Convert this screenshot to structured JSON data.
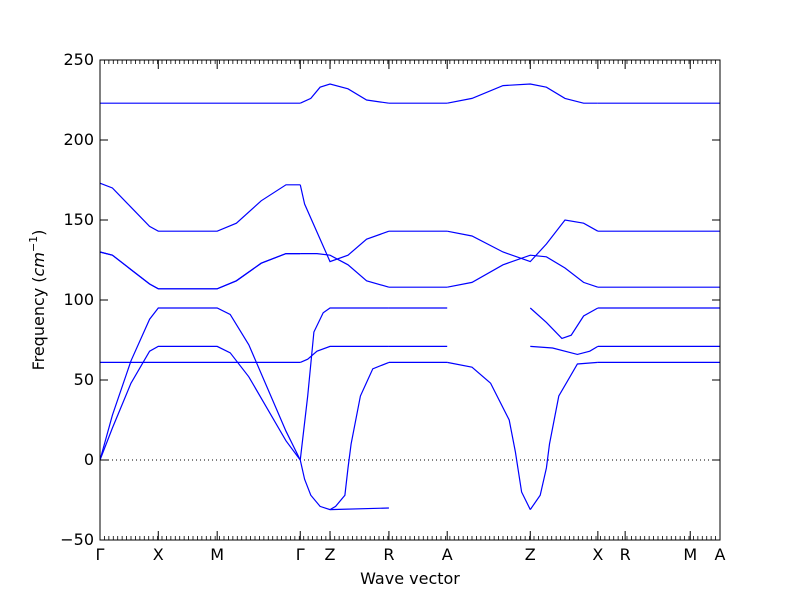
{
  "chart_data": {
    "type": "line",
    "title": "",
    "xlabel": "Wave vector",
    "ylabel": "Frequency",
    "ylabel_unit": "cm",
    "ylabel_unit_exponent": "−1",
    "ylim": [
      -50,
      250
    ],
    "yticks": [
      -50,
      0,
      50,
      100,
      150,
      200,
      250
    ],
    "xlim": [
      0,
      1
    ],
    "xticks": [
      {
        "label": "Γ",
        "pos": 0.0
      },
      {
        "label": "X",
        "pos": 0.094
      },
      {
        "label": "M",
        "pos": 0.189
      },
      {
        "label": "Γ",
        "pos": 0.323
      },
      {
        "label": "Z",
        "pos": 0.371
      },
      {
        "label": "R",
        "pos": 0.466
      },
      {
        "label": "A",
        "pos": 0.56
      },
      {
        "label": "Z",
        "pos": 0.694
      },
      {
        "label": "X",
        "pos": 0.803
      },
      {
        "label": "R",
        "pos": 0.847
      },
      {
        "label": "M",
        "pos": 0.952
      },
      {
        "label": "A",
        "pos": 1.0
      }
    ],
    "zero_line": true,
    "grid": false,
    "line_color": "#0000ff",
    "series": [
      {
        "x": [
          0,
          0.02,
          0.05,
          0.08,
          0.094,
          0.189,
          0.21,
          0.24,
          0.27,
          0.3,
          0.323
        ],
        "y": [
          0,
          20,
          48,
          68,
          71,
          71,
          67,
          52,
          32,
          12,
          0
        ]
      },
      {
        "x": [
          0,
          0.02,
          0.05,
          0.08,
          0.094,
          0.189,
          0.21,
          0.24,
          0.27,
          0.3,
          0.323
        ],
        "y": [
          0,
          28,
          62,
          88,
          95,
          95,
          91,
          72,
          45,
          18,
          0
        ]
      },
      {
        "x": [
          0,
          0.094,
          0.189,
          0.323
        ],
        "y": [
          61,
          61,
          61,
          61
        ]
      },
      {
        "x": [
          0,
          0.02,
          0.05,
          0.08,
          0.094,
          0.189,
          0.22,
          0.26,
          0.3,
          0.323
        ],
        "y": [
          130,
          128,
          119,
          110,
          107,
          107,
          112,
          123,
          129,
          129
        ]
      },
      {
        "x": [
          0,
          0.02,
          0.05,
          0.08,
          0.094,
          0.189,
          0.22,
          0.26,
          0.3,
          0.323
        ],
        "y": [
          130,
          128,
          119,
          110,
          107,
          107,
          112,
          123,
          129,
          129
        ]
      },
      {
        "x": [
          0,
          0.02,
          0.05,
          0.08,
          0.094,
          0.189,
          0.22,
          0.26,
          0.3,
          0.323
        ],
        "y": [
          173,
          170,
          158,
          146,
          143,
          143,
          148,
          162,
          172,
          172
        ]
      },
      {
        "x": [
          0,
          0.323
        ],
        "y": [
          223,
          223
        ]
      },
      {
        "x": [
          0.323,
          0.33,
          0.34,
          0.355,
          0.371,
          0.466
        ],
        "y": [
          0,
          -12,
          -22,
          -29,
          -31,
          -30
        ]
      },
      {
        "x": [
          0.371,
          0.38,
          0.395,
          0.4,
          0.405,
          0.42,
          0.44,
          0.466
        ],
        "y": [
          -31,
          -29,
          -22,
          -5,
          10,
          40,
          57,
          61
        ]
      },
      {
        "x": [
          0.323,
          0.335,
          0.345,
          0.36,
          0.371,
          0.466
        ],
        "y": [
          0,
          40,
          80,
          92,
          95,
          95
        ]
      },
      {
        "x": [
          0.323,
          0.335,
          0.35,
          0.371,
          0.466
        ],
        "y": [
          61,
          63,
          68,
          71,
          71
        ]
      },
      {
        "x": [
          0.323,
          0.33,
          0.371,
          0.4,
          0.43,
          0.466
        ],
        "y": [
          172,
          160,
          124,
          128,
          138,
          143
        ]
      },
      {
        "x": [
          0.323,
          0.35,
          0.371,
          0.4,
          0.43,
          0.466
        ],
        "y": [
          129,
          129,
          128,
          122,
          112,
          108
        ]
      },
      {
        "x": [
          0.323,
          0.34,
          0.355,
          0.371,
          0.4,
          0.43,
          0.466
        ],
        "y": [
          223,
          226,
          233,
          235,
          232,
          225,
          223
        ]
      },
      {
        "x": [
          0.466,
          0.56
        ],
        "y": [
          61,
          61
        ]
      },
      {
        "x": [
          0.466,
          0.56
        ],
        "y": [
          71,
          71
        ]
      },
      {
        "x": [
          0.466,
          0.56
        ],
        "y": [
          95,
          95
        ]
      },
      {
        "x": [
          0.466,
          0.56
        ],
        "y": [
          108,
          108
        ]
      },
      {
        "x": [
          0.466,
          0.56
        ],
        "y": [
          143,
          143
        ]
      },
      {
        "x": [
          0.466,
          0.56
        ],
        "y": [
          223,
          223
        ]
      },
      {
        "x": [
          0.56,
          0.6,
          0.63,
          0.66,
          0.67,
          0.68,
          0.694
        ],
        "y": [
          61,
          58,
          48,
          25,
          5,
          -20,
          -31
        ]
      },
      {
        "x": [
          0.694,
          0.71,
          0.72,
          0.725,
          0.74,
          0.77,
          0.803
        ],
        "y": [
          -31,
          -22,
          -5,
          10,
          40,
          60,
          61
        ]
      },
      {
        "x": [
          0.56,
          0.6,
          0.65,
          0.694,
          0.72,
          0.75,
          0.78,
          0.803
        ],
        "y": [
          108,
          111,
          122,
          128,
          127,
          120,
          111,
          108
        ]
      },
      {
        "x": [
          0.56,
          0.6,
          0.65,
          0.694,
          0.72,
          0.75,
          0.78,
          0.803
        ],
        "y": [
          143,
          140,
          130,
          124,
          135,
          150,
          148,
          143
        ]
      },
      {
        "x": [
          0.56,
          0.6,
          0.65,
          0.694,
          0.72,
          0.75,
          0.78,
          0.803
        ],
        "y": [
          223,
          226,
          234,
          235,
          233,
          226,
          223,
          223
        ]
      },
      {
        "x": [
          0.694,
          0.72,
          0.745,
          0.76,
          0.78,
          0.803
        ],
        "y": [
          95,
          86,
          76,
          78,
          90,
          95
        ]
      },
      {
        "x": [
          0.694,
          0.73,
          0.77,
          0.79,
          0.803
        ],
        "y": [
          71,
          70,
          66,
          68,
          71
        ]
      },
      {
        "x": [
          0.803,
          1.0
        ],
        "y": [
          61,
          61
        ]
      },
      {
        "x": [
          0.803,
          1.0
        ],
        "y": [
          71,
          71
        ]
      },
      {
        "x": [
          0.803,
          1.0
        ],
        "y": [
          95,
          95
        ]
      },
      {
        "x": [
          0.803,
          1.0
        ],
        "y": [
          108,
          108
        ]
      },
      {
        "x": [
          0.803,
          1.0
        ],
        "y": [
          143,
          143
        ]
      },
      {
        "x": [
          0.803,
          1.0
        ],
        "y": [
          223,
          223
        ]
      }
    ]
  }
}
